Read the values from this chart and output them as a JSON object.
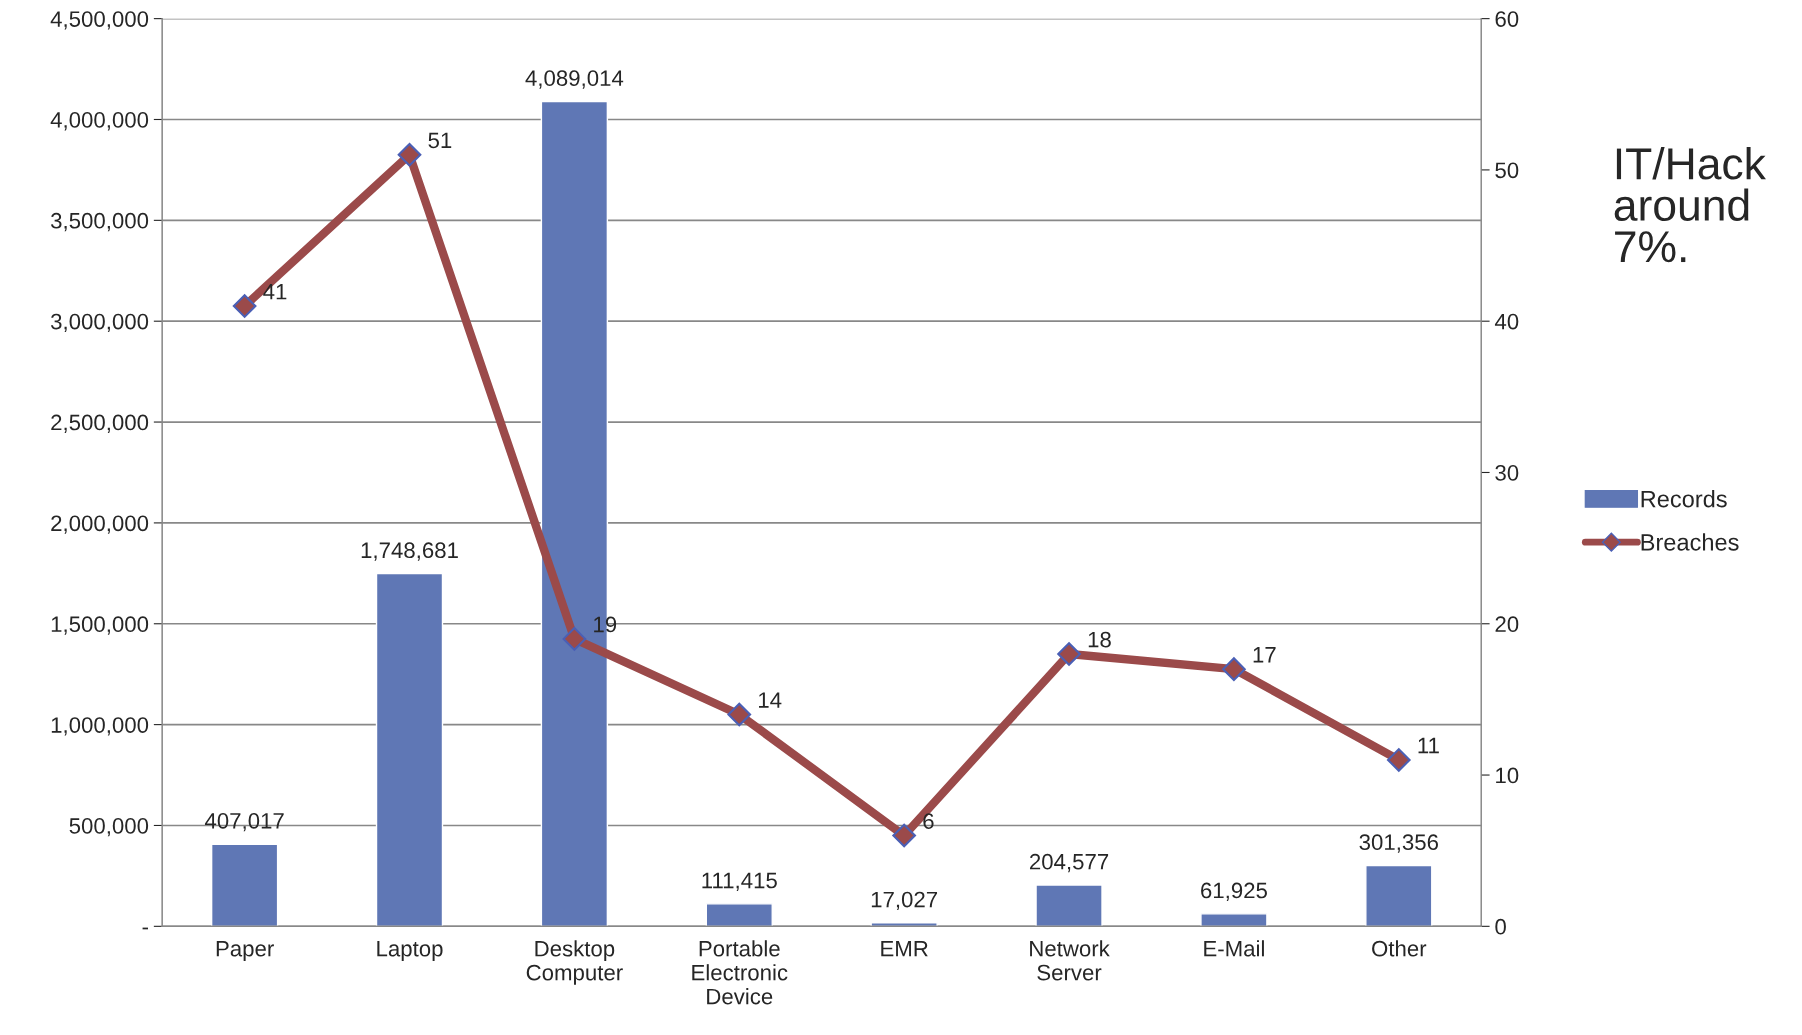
{
  "chart_data": {
    "type": "bar",
    "categories": [
      "Paper",
      "Laptop",
      "Desktop\nComputer",
      "Portable\nElectronic\nDevice",
      "EMR",
      "Network\nServer",
      "E-Mail",
      "Other"
    ],
    "series": [
      {
        "name": "Records",
        "color": "#5f77b5",
        "values": [
          407017,
          1748681,
          4089014,
          111415,
          17027,
          204577,
          61925,
          301356
        ],
        "value_labels": [
          "407,017",
          "1,748,681",
          "4,089,014",
          "111,415",
          "17,027",
          "204,577",
          "61,925",
          "301,356"
        ]
      },
      {
        "name": "Breaches",
        "type": "line",
        "axis": "y2",
        "color": "#9b4a4a",
        "marker": "diamond",
        "values": [
          41,
          51,
          19,
          14,
          6,
          18,
          17,
          11
        ],
        "value_labels": [
          "41",
          "51",
          "19",
          "14",
          "6",
          "18",
          "17",
          "11"
        ]
      }
    ],
    "ylim": [
      0,
      4500000
    ],
    "yticks": [
      {
        "value": 0,
        "label": "-"
      },
      {
        "value": 500000,
        "label": "500,000"
      },
      {
        "value": 1000000,
        "label": "1,000,000"
      },
      {
        "value": 1500000,
        "label": "1,500,000"
      },
      {
        "value": 2000000,
        "label": "2,000,000"
      },
      {
        "value": 2500000,
        "label": "2,500,000"
      },
      {
        "value": 3000000,
        "label": "3,000,000"
      },
      {
        "value": 3500000,
        "label": "3,500,000"
      },
      {
        "value": 4000000,
        "label": "4,000,000"
      },
      {
        "value": 4500000,
        "label": "4,500,000"
      }
    ],
    "y2lim": [
      0,
      60
    ],
    "y2ticks": [
      0,
      10,
      20,
      30,
      40,
      50,
      60
    ],
    "grid": "y",
    "legend": "right",
    "annotations": [
      "IT/Hack\naround\n7%."
    ]
  }
}
